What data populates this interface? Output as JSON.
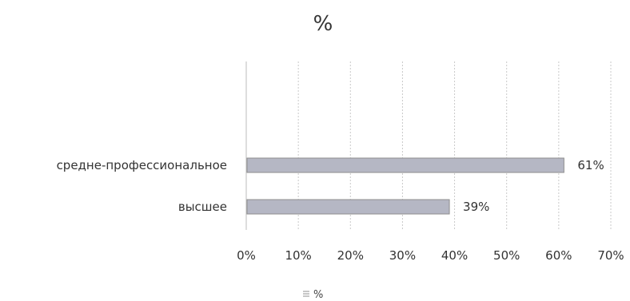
{
  "chart_data": {
    "type": "bar",
    "orientation": "horizontal",
    "title": "%",
    "categories": [
      "средне-профессиональное",
      "высшее"
    ],
    "series": [
      {
        "name": "%",
        "values": [
          61,
          39
        ],
        "color": "#b5b7c4"
      }
    ],
    "data_labels": [
      "61%",
      "39%"
    ],
    "xlim": [
      0,
      70
    ],
    "x_ticks": [
      "0%",
      "10%",
      "20%",
      "30%",
      "40%",
      "50%",
      "60%",
      "70%"
    ],
    "grid": true,
    "legend": {
      "position": "bottom",
      "entries": [
        "%"
      ]
    }
  }
}
